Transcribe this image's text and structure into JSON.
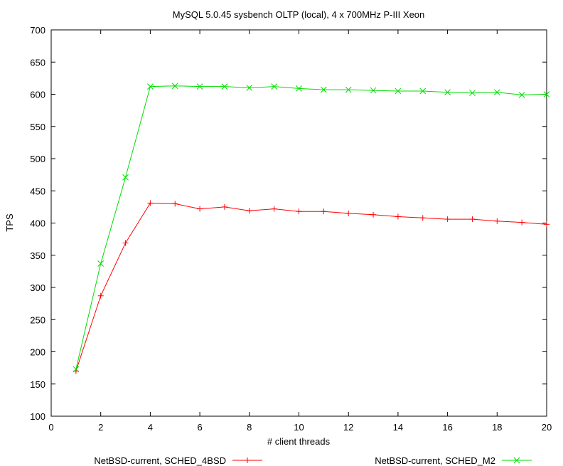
{
  "chart_data": {
    "type": "line",
    "title": "MySQL 5.0.45 sysbench OLTP (local), 4 x 700MHz P-III Xeon",
    "xlabel": "# client threads",
    "ylabel": "TPS",
    "xlim": [
      0,
      20
    ],
    "ylim": [
      100,
      700
    ],
    "xticks": [
      0,
      2,
      4,
      6,
      8,
      10,
      12,
      14,
      16,
      18,
      20
    ],
    "yticks": [
      100,
      150,
      200,
      250,
      300,
      350,
      400,
      450,
      500,
      550,
      600,
      650,
      700
    ],
    "grid": false,
    "legend_position": "bottom",
    "x": [
      1,
      2,
      3,
      4,
      5,
      6,
      7,
      8,
      9,
      10,
      11,
      12,
      13,
      14,
      15,
      16,
      17,
      18,
      19,
      20
    ],
    "series": [
      {
        "name": "NetBSD-current, SCHED_4BSD",
        "color": "#ff0000",
        "marker": "plus",
        "values": [
          170,
          287,
          369,
          431,
          430,
          422,
          425,
          419,
          422,
          418,
          418,
          415,
          413,
          410,
          408,
          406,
          406,
          403,
          401,
          398
        ]
      },
      {
        "name": "NetBSD-current, SCHED_M2",
        "color": "#00dd00",
        "marker": "cross",
        "values": [
          173,
          337,
          471,
          612,
          613,
          612,
          612,
          610,
          612,
          609,
          607,
          607,
          606,
          605,
          605,
          603,
          602,
          603,
          599,
          600
        ]
      }
    ]
  }
}
